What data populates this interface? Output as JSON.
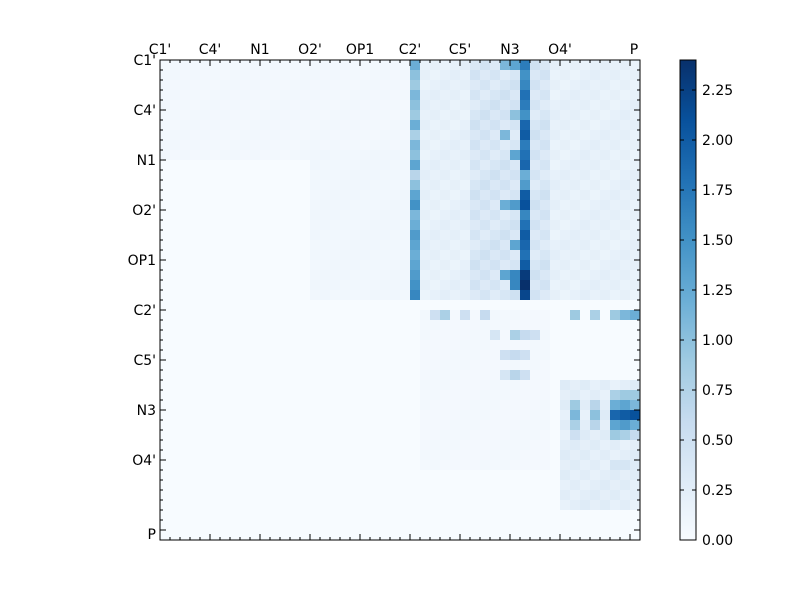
{
  "chart_data": {
    "type": "heatmap",
    "title": "",
    "xlabel": "",
    "ylabel": "",
    "rows": 48,
    "cols": 48,
    "tick_labels": [
      "C1'",
      "C4'",
      "N1",
      "O2'",
      "OP1",
      "C2'",
      "C5'",
      "N3",
      "O4'",
      "P"
    ],
    "tick_positions": [
      0,
      5,
      10,
      15,
      20,
      25,
      30,
      35,
      40,
      47
    ],
    "colorbar": {
      "min": 0.0,
      "max": 2.4,
      "ticks": [
        "0.00",
        "0.25",
        "0.50",
        "0.75",
        "1.00",
        "1.25",
        "1.50",
        "1.75",
        "2.00",
        "2.25"
      ],
      "tick_values": [
        0,
        0.25,
        0.5,
        0.75,
        1.0,
        1.25,
        1.5,
        1.75,
        2.0,
        2.25
      ],
      "colors": [
        "#f7fbff",
        "#deebf7",
        "#c6dbef",
        "#9ecae1",
        "#6baed6",
        "#4292c6",
        "#2171b5",
        "#08519c",
        "#08306b"
      ]
    },
    "cells": [
      [
        0,
        25,
        1.2
      ],
      [
        1,
        25,
        1.0
      ],
      [
        2,
        25,
        0.9
      ],
      [
        3,
        25,
        1.1
      ],
      [
        4,
        25,
        1.0
      ],
      [
        5,
        25,
        0.9
      ],
      [
        6,
        25,
        1.2
      ],
      [
        7,
        25,
        0.8
      ],
      [
        8,
        25,
        1.1
      ],
      [
        9,
        25,
        1.0
      ],
      [
        10,
        25,
        1.3
      ],
      [
        11,
        25,
        0.7
      ],
      [
        12,
        25,
        1.0
      ],
      [
        13,
        25,
        1.3
      ],
      [
        14,
        25,
        1.5
      ],
      [
        15,
        25,
        1.1
      ],
      [
        16,
        25,
        1.2
      ],
      [
        17,
        25,
        1.4
      ],
      [
        18,
        25,
        1.3
      ],
      [
        19,
        25,
        1.2
      ],
      [
        20,
        25,
        1.3
      ],
      [
        21,
        25,
        1.4
      ],
      [
        22,
        25,
        1.5
      ],
      [
        23,
        25,
        1.6
      ],
      [
        0,
        36,
        1.7
      ],
      [
        1,
        36,
        1.5
      ],
      [
        2,
        36,
        1.6
      ],
      [
        3,
        36,
        1.8
      ],
      [
        4,
        36,
        1.7
      ],
      [
        5,
        36,
        1.5
      ],
      [
        6,
        36,
        1.9
      ],
      [
        7,
        36,
        2.0
      ],
      [
        8,
        36,
        1.7
      ],
      [
        9,
        36,
        1.8
      ],
      [
        10,
        36,
        1.9
      ],
      [
        11,
        36,
        1.2
      ],
      [
        12,
        36,
        1.4
      ],
      [
        13,
        36,
        2.0
      ],
      [
        14,
        36,
        2.1
      ],
      [
        15,
        36,
        1.6
      ],
      [
        16,
        36,
        1.8
      ],
      [
        17,
        36,
        2.0
      ],
      [
        18,
        36,
        1.9
      ],
      [
        19,
        36,
        1.8
      ],
      [
        20,
        36,
        2.0
      ],
      [
        21,
        36,
        2.3
      ],
      [
        22,
        36,
        2.4
      ],
      [
        23,
        36,
        2.2
      ],
      [
        0,
        35,
        1.3
      ],
      [
        5,
        35,
        1.0
      ],
      [
        9,
        35,
        1.3
      ],
      [
        14,
        35,
        1.4
      ],
      [
        18,
        35,
        1.3
      ],
      [
        21,
        35,
        1.6
      ],
      [
        22,
        35,
        1.6
      ],
      [
        0,
        34,
        1.1
      ],
      [
        7,
        34,
        1.1
      ],
      [
        14,
        34,
        1.2
      ],
      [
        21,
        34,
        1.3
      ],
      [
        25,
        27,
        0.5
      ],
      [
        25,
        28,
        0.8
      ],
      [
        25,
        30,
        0.5
      ],
      [
        25,
        32,
        0.6
      ],
      [
        25,
        41,
        0.9
      ],
      [
        25,
        43,
        0.8
      ],
      [
        25,
        45,
        0.9
      ],
      [
        25,
        46,
        1.1
      ],
      [
        25,
        47,
        1.2
      ],
      [
        27,
        33,
        0.4
      ],
      [
        27,
        35,
        0.8
      ],
      [
        27,
        36,
        0.6
      ],
      [
        27,
        37,
        0.5
      ],
      [
        29,
        34,
        0.5
      ],
      [
        29,
        35,
        0.6
      ],
      [
        29,
        36,
        0.5
      ],
      [
        31,
        34,
        0.4
      ],
      [
        31,
        35,
        0.7
      ],
      [
        31,
        36,
        0.5
      ],
      [
        33,
        45,
        0.8
      ],
      [
        33,
        46,
        0.9
      ],
      [
        33,
        47,
        0.9
      ],
      [
        34,
        41,
        0.9
      ],
      [
        34,
        43,
        0.7
      ],
      [
        34,
        45,
        1.2
      ],
      [
        34,
        46,
        1.3
      ],
      [
        34,
        47,
        1.1
      ],
      [
        35,
        41,
        1.1
      ],
      [
        35,
        43,
        1.0
      ],
      [
        35,
        45,
        1.9
      ],
      [
        35,
        46,
        2.0
      ],
      [
        35,
        47,
        2.1
      ],
      [
        36,
        41,
        0.8
      ],
      [
        36,
        43,
        0.7
      ],
      [
        36,
        45,
        1.3
      ],
      [
        36,
        46,
        1.4
      ],
      [
        36,
        47,
        1.2
      ],
      [
        37,
        41,
        0.5
      ],
      [
        37,
        45,
        0.9
      ],
      [
        37,
        46,
        0.8
      ],
      [
        37,
        47,
        0.6
      ],
      [
        40,
        45,
        0.4
      ],
      [
        40,
        46,
        0.4
      ],
      [
        40,
        47,
        0.3
      ]
    ],
    "background_fill": [
      {
        "r0": 0,
        "r1": 23,
        "c0": 25,
        "c1": 47,
        "v": 0.2
      },
      {
        "r0": 0,
        "r1": 23,
        "c0": 31,
        "c1": 38,
        "v": 0.4
      },
      {
        "r0": 0,
        "r1": 9,
        "c0": 0,
        "c1": 24,
        "v": 0.06
      },
      {
        "r0": 9,
        "r1": 23,
        "c0": 15,
        "c1": 24,
        "v": 0.08
      },
      {
        "r0": 25,
        "r1": 40,
        "c0": 26,
        "c1": 38,
        "v": 0.05
      },
      {
        "r0": 32,
        "r1": 44,
        "c0": 40,
        "c1": 47,
        "v": 0.25
      }
    ]
  }
}
